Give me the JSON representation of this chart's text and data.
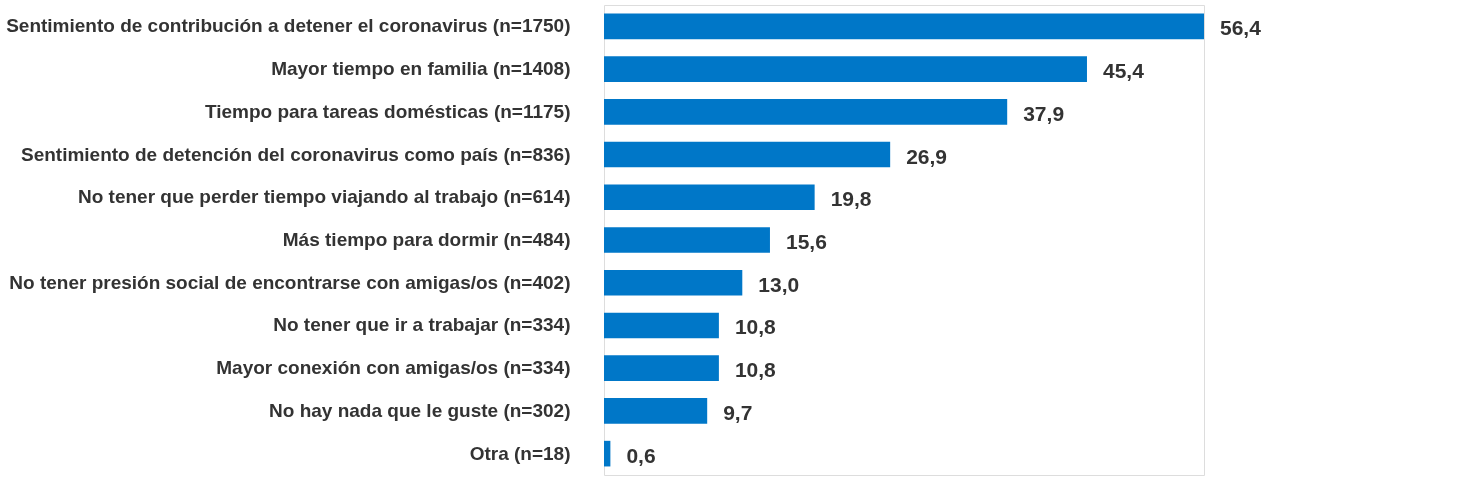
{
  "chart_data": {
    "type": "bar",
    "orientation": "horizontal",
    "color": "#0077c8",
    "categories": [
      "Sentimiento de contribución a detener el coronavirus (n=1750)",
      "Mayor tiempo en familia (n=1408)",
      "Tiempo para tareas domésticas (n=1175)",
      "Sentimiento de detención del coronavirus como país (n=836)",
      "No tener que perder tiempo viajando al trabajo (n=614)",
      "Más tiempo para dormir (n=484)",
      "No tener presión social de encontrarse con amigas/os (n=402)",
      "No tener que ir a trabajar (n=334)",
      "Mayor conexión con amigas/os (n=334)",
      "No hay nada que le guste (n=302)",
      "Otra (n=18)"
    ],
    "values": [
      56.4,
      45.4,
      37.9,
      26.9,
      19.8,
      15.6,
      13.0,
      10.8,
      10.8,
      9.7,
      0.6
    ],
    "value_labels": [
      "56,4",
      "45,4",
      "37,9",
      "26,9",
      "19,8",
      "15,6",
      "13,0",
      "10,8",
      "10,8",
      "9,7",
      "0,6"
    ]
  }
}
